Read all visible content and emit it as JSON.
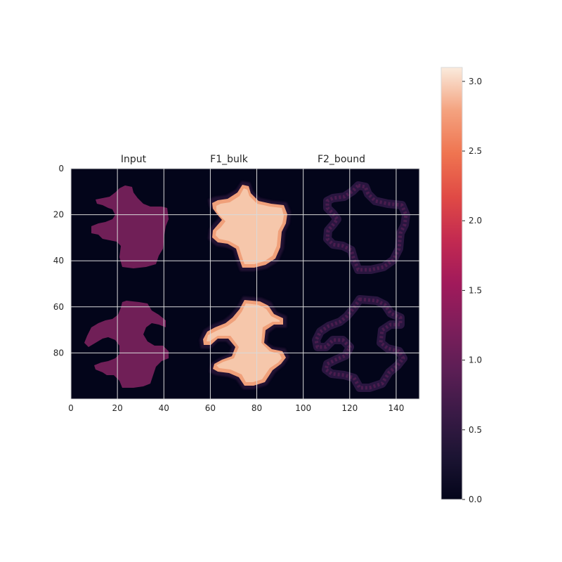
{
  "chart_data": {
    "type": "heatmap",
    "title": "",
    "panel_titles": [
      "Input",
      "F1_bulk",
      "F2_bound"
    ],
    "xlim": [
      0,
      150
    ],
    "ylim": [
      100,
      0
    ],
    "x_ticks": [
      "0",
      "20",
      "40",
      "60",
      "80",
      "100",
      "120",
      "140"
    ],
    "x_tick_values": [
      0,
      20,
      40,
      60,
      80,
      100,
      120,
      140
    ],
    "y_ticks": [
      "0",
      "20",
      "40",
      "60",
      "80"
    ],
    "y_tick_values": [
      0,
      20,
      40,
      60,
      80
    ],
    "grid": true,
    "colormap": "rocket",
    "colorbar": {
      "min": 0.0,
      "max": 3.1,
      "ticks": [
        "0.0",
        "0.5",
        "1.0",
        "1.5",
        "2.0",
        "2.5",
        "3.0"
      ],
      "tick_values": [
        0.0,
        0.5,
        1.0,
        1.5,
        2.0,
        2.5,
        3.0
      ]
    },
    "panels": [
      {
        "name": "Input",
        "x_range": [
          0,
          50
        ],
        "inside_value": 1.0,
        "outside_value": 0.0
      },
      {
        "name": "F1_bulk",
        "x_range": [
          50,
          100
        ],
        "inside_value": 3.0,
        "outside_value": 0.0
      },
      {
        "name": "F2_bound",
        "x_range": [
          100,
          150
        ],
        "ring_value": 0.6,
        "outside_value": 0.0
      }
    ],
    "shapes": [
      {
        "name": "upper",
        "y_range": [
          6,
          45
        ]
      },
      {
        "name": "lower",
        "y_range": [
          55,
          95
        ]
      }
    ],
    "colors": {
      "background": "#03051a",
      "input_fill": "#701f57",
      "bulk_fill": "#f6c7ab",
      "bulk_edge": "#f0a07a",
      "bound_ring": "#3a1a46",
      "grid": "#d9d9d9"
    }
  }
}
